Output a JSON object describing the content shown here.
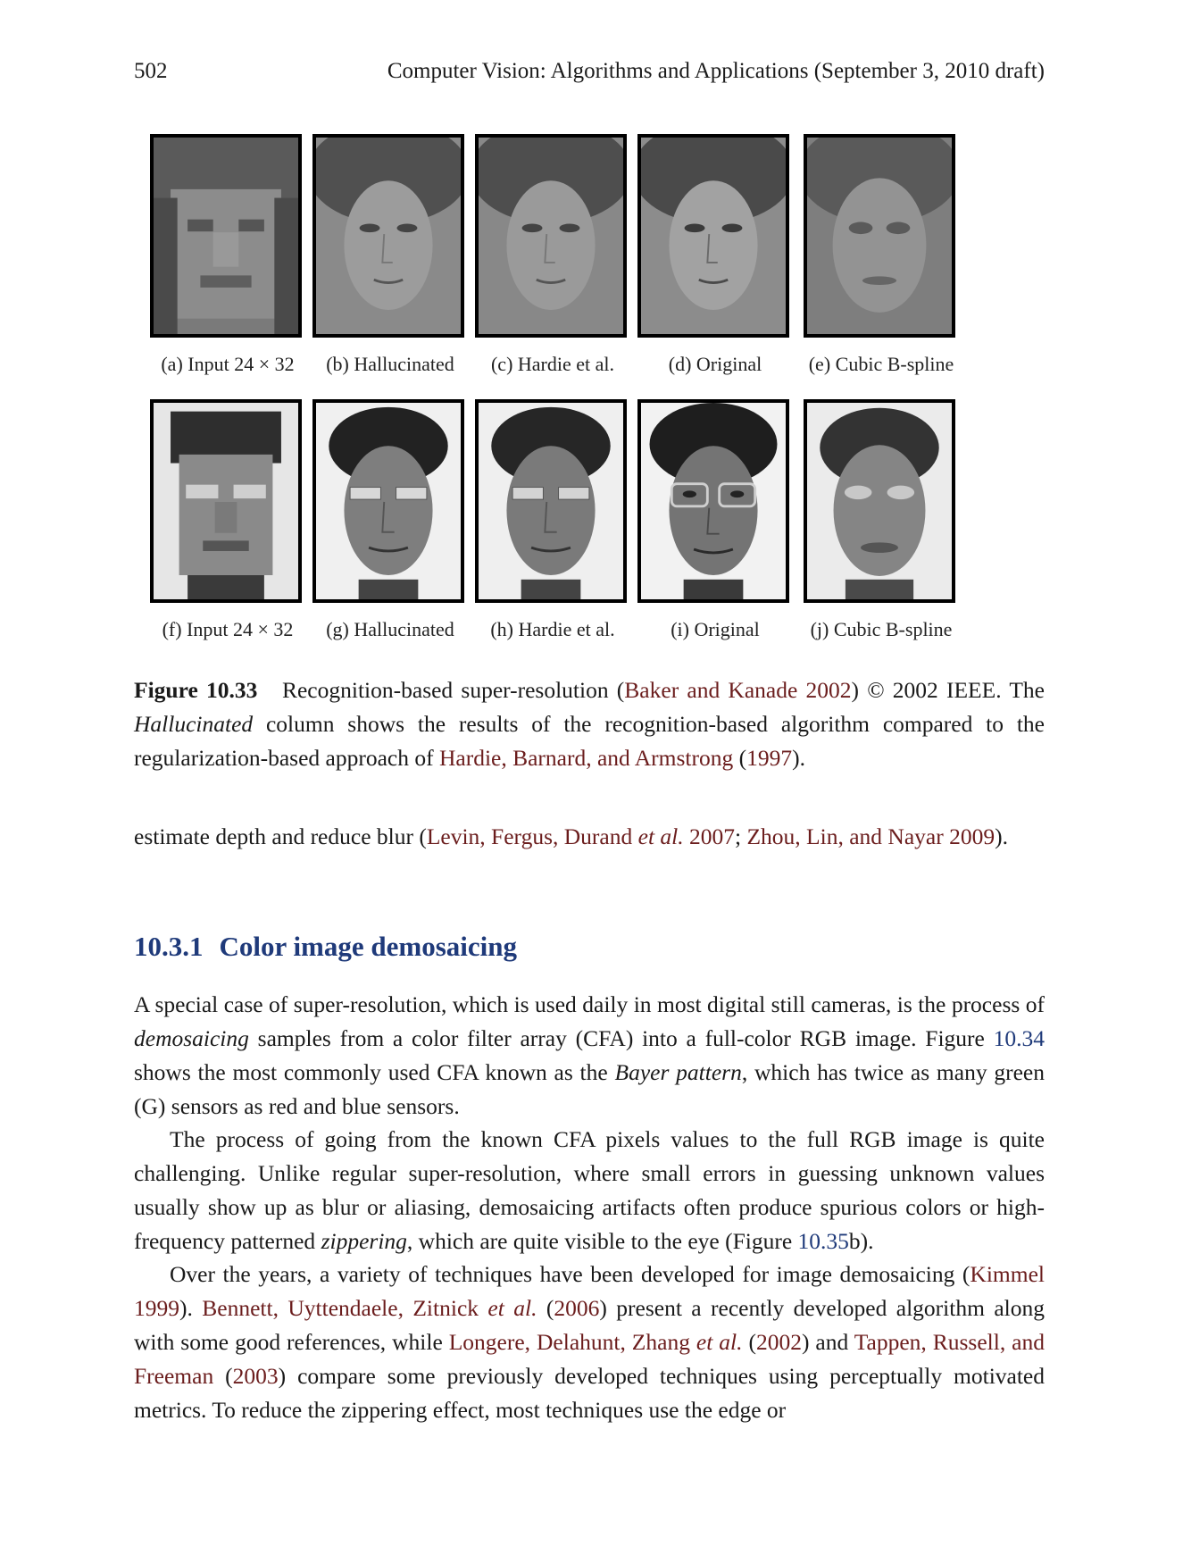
{
  "header": {
    "page_number": "502",
    "running_title": "Computer Vision: Algorithms and Applications (September 3, 2010 draft)"
  },
  "figure": {
    "row1_captions": [
      "(a) Input 24 × 32",
      "(b) Hallucinated",
      "(c) Hardie et al.",
      "(d) Original",
      "(e) Cubic B-spline"
    ],
    "row2_captions": [
      "(f) Input 24 × 32",
      "(g) Hallucinated",
      "(h) Hardie et al.",
      "(i) Original",
      "(j) Cubic B-spline"
    ],
    "caption": {
      "label": "Figure 10.33",
      "text1": "Recognition-based super-resolution (",
      "cite1": "Baker and Kanade 2002",
      "text2": ") © 2002 IEEE. The ",
      "emph": "Hallucinated",
      "text3": " column shows the results of the recognition-based algorithm compared to the regularization-based approach of ",
      "cite2": "Hardie, Barnard, and Armstrong",
      "text4": " (",
      "cite3": "1997",
      "text5": ")."
    }
  },
  "para0": {
    "text1": "estimate depth and reduce blur (",
    "cite1": "Levin, Fergus, Durand ",
    "cite1_em": "et al.",
    "cite1_year": " 2007",
    "text2": "; ",
    "cite2": "Zhou, Lin, and Nayar 2009",
    "text3": ")."
  },
  "section": {
    "number": "10.3.1",
    "title": "Color image demosaicing"
  },
  "para1": {
    "text1": "A special case of super-resolution, which is used daily in most digital still cameras, is the process of ",
    "em1": "demosaicing",
    "text2": " samples from a color filter array (CFA) into a full-color RGB image. Figure ",
    "ref1": "10.34",
    "text3": " shows the most commonly used CFA known as the ",
    "em2": "Bayer pattern",
    "text4": ", which has twice as many green (G) sensors as red and blue sensors."
  },
  "para2": {
    "text1": "The process of going from the known CFA pixels values to the full RGB image is quite challenging. Unlike regular super-resolution, where small errors in guessing unknown values usually show up as blur or aliasing, demosaicing artifacts often produce spurious colors or high-frequency patterned ",
    "em1": "zippering",
    "text2": ", which are quite visible to the eye (Figure ",
    "ref1": "10.35",
    "text3": "b)."
  },
  "para3": {
    "text1": "Over the years, a variety of techniques have been developed for image demosaicing (",
    "cite1": "Kimmel 1999",
    "text2": "). ",
    "cite2": "Bennett, Uyttendaele, Zitnick ",
    "cite2_em": "et al.",
    "text3": " (",
    "cite2_year": "2006",
    "text4": ") present a recently developed algorithm along with some good references, while ",
    "cite3": "Longere, Delahunt, Zhang ",
    "cite3_em": "et al.",
    "text5": " (",
    "cite3_year": "2002",
    "text6": ") and ",
    "cite4": "Tappen, Russell, and Freeman",
    "text7": " (",
    "cite4_year": "2003",
    "text8": ") compare some previously developed techniques using perceptually motivated metrics.  To reduce the zippering effect, most techniques use the edge or"
  },
  "colors": {
    "link": "#6b1d1d",
    "section": "#1f3a7a"
  }
}
